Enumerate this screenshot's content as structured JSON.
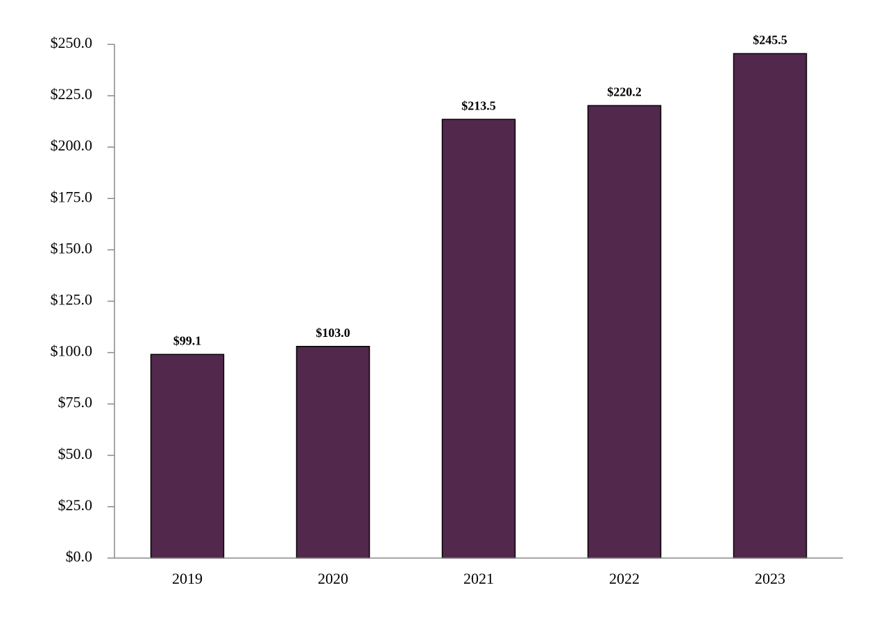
{
  "chart_data": {
    "type": "bar",
    "categories": [
      "2019",
      "2020",
      "2021",
      "2022",
      "2023"
    ],
    "values": [
      99.1,
      103.0,
      213.5,
      220.2,
      245.5
    ],
    "value_labels": [
      "$99.1",
      "$103.0",
      "$213.5",
      "$220.2",
      "$245.5"
    ],
    "color": "#52284d",
    "ylim": [
      0,
      250
    ],
    "yticks": [
      {
        "value": 0,
        "label": "$0.0"
      },
      {
        "value": 25,
        "label": "$25.0"
      },
      {
        "value": 50,
        "label": "$50.0"
      },
      {
        "value": 75,
        "label": "$75.0"
      },
      {
        "value": 100,
        "label": "$100.0"
      },
      {
        "value": 125,
        "label": "$125.0"
      },
      {
        "value": 150,
        "label": "$150.0"
      },
      {
        "value": 175,
        "label": "$175.0"
      },
      {
        "value": 200,
        "label": "$200.0"
      },
      {
        "value": 225,
        "label": "$225.0"
      },
      {
        "value": 250,
        "label": "$250.0"
      }
    ],
    "grid": false
  }
}
